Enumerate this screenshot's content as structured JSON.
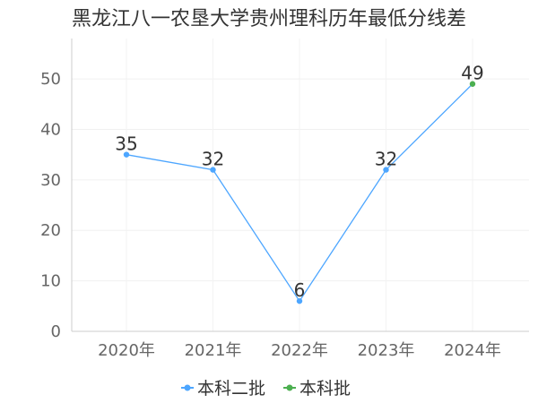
{
  "chart_data": {
    "type": "line",
    "title": "黑龙江八一农垦大学贵州理科历年最低分线差",
    "categories": [
      "2020年",
      "2021年",
      "2022年",
      "2023年",
      "2024年"
    ],
    "y_ticks": [
      "0",
      "10",
      "20",
      "30",
      "40",
      "50"
    ],
    "ylim": [
      0,
      58
    ],
    "grid": true,
    "legend_position": "bottom",
    "series": [
      {
        "name": "本科二批",
        "color": "#4da6ff",
        "values": [
          35,
          32,
          6,
          32,
          null
        ]
      },
      {
        "name": "本科批",
        "color": "#4caf50",
        "values": [
          null,
          null,
          null,
          null,
          49
        ]
      }
    ],
    "connector": {
      "color": "#4da6ff",
      "from_index": 3,
      "to_index": 4
    },
    "data_labels": [
      "35",
      "32",
      "6",
      "32",
      "49"
    ]
  }
}
